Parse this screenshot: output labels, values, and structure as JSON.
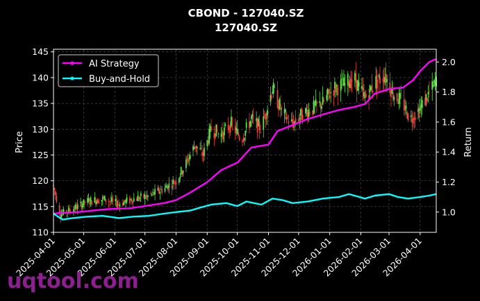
{
  "chart_data": {
    "type": "candlestick-line",
    "title": "CBOND - 127040.SZ",
    "subtitle": "127040.SZ",
    "ylabel_left": "Price",
    "ylabel_right": "Return",
    "ylim_left": [
      110,
      145.5
    ],
    "yticks_left": [
      "110",
      "115",
      "120",
      "125",
      "130",
      "135",
      "140",
      "145"
    ],
    "ylim_right": [
      0.865,
      2.085
    ],
    "yticks_right": [
      "1.0",
      "1.2",
      "1.4",
      "1.6",
      "1.8",
      "2.0"
    ],
    "x_range": [
      "2025-04-01",
      "2026-04-17"
    ],
    "xticks": [
      "2025-04-01",
      "2025-05-01",
      "2025-06-01",
      "2025-07-01",
      "2025-08-01",
      "2025-09-01",
      "2025-10-01",
      "2025-11-01",
      "2025-12-01",
      "2026-01-01",
      "2026-02-01",
      "2026-03-01",
      "2026-04-01"
    ],
    "grid": true,
    "legend_position": "top-left",
    "colors": {
      "up": "#5fe04a",
      "down": "#e8453c",
      "ai": "#ff00ff",
      "bh": "#00ffff",
      "background": "#000000",
      "axes": "#ffffff",
      "grid": "#555555"
    },
    "price_anchors": [
      [
        "2025-04-01",
        119.0
      ],
      [
        "2025-04-08",
        113.5
      ],
      [
        "2025-04-20",
        114.5
      ],
      [
        "2025-05-05",
        116.0
      ],
      [
        "2025-05-20",
        116.5
      ],
      [
        "2025-06-05",
        115.5
      ],
      [
        "2025-06-20",
        116.5
      ],
      [
        "2025-07-05",
        117.0
      ],
      [
        "2025-07-20",
        118.5
      ],
      [
        "2025-08-01",
        120.0
      ],
      [
        "2025-08-10",
        123.0
      ],
      [
        "2025-08-20",
        127.0
      ],
      [
        "2025-08-28",
        125.0
      ],
      [
        "2025-09-05",
        130.0
      ],
      [
        "2025-09-15",
        129.0
      ],
      [
        "2025-09-25",
        131.0
      ],
      [
        "2025-10-05",
        128.0
      ],
      [
        "2025-10-15",
        132.0
      ],
      [
        "2025-10-25",
        130.0
      ],
      [
        "2025-11-05",
        138.0
      ],
      [
        "2025-11-15",
        133.0
      ],
      [
        "2025-11-25",
        131.0
      ],
      [
        "2025-12-05",
        133.0
      ],
      [
        "2025-12-15",
        134.0
      ],
      [
        "2025-12-25",
        135.0
      ],
      [
        "2026-01-05",
        138.0
      ],
      [
        "2026-01-15",
        138.5
      ],
      [
        "2026-01-25",
        140.0
      ],
      [
        "2026-02-05",
        136.0
      ],
      [
        "2026-02-15",
        139.0
      ],
      [
        "2026-02-25",
        140.5
      ],
      [
        "2026-03-05",
        137.0
      ],
      [
        "2026-03-15",
        135.0
      ],
      [
        "2026-03-22",
        132.0
      ],
      [
        "2026-04-01",
        134.0
      ],
      [
        "2026-04-10",
        137.0
      ],
      [
        "2026-04-17",
        139.0
      ]
    ],
    "series": [
      {
        "name": "AI Strategy",
        "points": [
          [
            "2025-04-01",
            0.99
          ],
          [
            "2025-04-10",
            0.995
          ],
          [
            "2025-04-25",
            1.0
          ],
          [
            "2025-05-10",
            1.01
          ],
          [
            "2025-05-25",
            1.02
          ],
          [
            "2025-06-15",
            1.025
          ],
          [
            "2025-07-01",
            1.04
          ],
          [
            "2025-07-20",
            1.06
          ],
          [
            "2025-08-01",
            1.08
          ],
          [
            "2025-08-15",
            1.13
          ],
          [
            "2025-09-01",
            1.2
          ],
          [
            "2025-09-15",
            1.28
          ],
          [
            "2025-10-01",
            1.33
          ],
          [
            "2025-10-15",
            1.43
          ],
          [
            "2025-11-01",
            1.45
          ],
          [
            "2025-11-10",
            1.54
          ],
          [
            "2025-11-25",
            1.58
          ],
          [
            "2025-12-10",
            1.62
          ],
          [
            "2025-12-25",
            1.65
          ],
          [
            "2026-01-10",
            1.68
          ],
          [
            "2026-01-25",
            1.7
          ],
          [
            "2026-02-05",
            1.72
          ],
          [
            "2026-02-15",
            1.79
          ],
          [
            "2026-03-01",
            1.82
          ],
          [
            "2026-03-15",
            1.83
          ],
          [
            "2026-03-25",
            1.88
          ],
          [
            "2026-04-01",
            1.94
          ],
          [
            "2026-04-10",
            2.0
          ],
          [
            "2026-04-17",
            2.02
          ]
        ]
      },
      {
        "name": "Buy-and-Hold",
        "points": [
          [
            "2025-04-01",
            0.99
          ],
          [
            "2025-04-10",
            0.95
          ],
          [
            "2025-04-20",
            0.96
          ],
          [
            "2025-05-05",
            0.97
          ],
          [
            "2025-05-20",
            0.975
          ],
          [
            "2025-06-05",
            0.96
          ],
          [
            "2025-06-20",
            0.97
          ],
          [
            "2025-07-05",
            0.975
          ],
          [
            "2025-07-20",
            0.99
          ],
          [
            "2025-08-01",
            1.0
          ],
          [
            "2025-08-15",
            1.01
          ],
          [
            "2025-08-25",
            1.03
          ],
          [
            "2025-09-05",
            1.05
          ],
          [
            "2025-09-20",
            1.06
          ],
          [
            "2025-10-01",
            1.04
          ],
          [
            "2025-10-10",
            1.07
          ],
          [
            "2025-10-25",
            1.05
          ],
          [
            "2025-11-05",
            1.09
          ],
          [
            "2025-11-15",
            1.08
          ],
          [
            "2025-11-25",
            1.06
          ],
          [
            "2025-12-10",
            1.07
          ],
          [
            "2025-12-25",
            1.09
          ],
          [
            "2026-01-10",
            1.1
          ],
          [
            "2026-01-20",
            1.12
          ],
          [
            "2026-02-05",
            1.09
          ],
          [
            "2026-02-15",
            1.11
          ],
          [
            "2026-03-01",
            1.12
          ],
          [
            "2026-03-10",
            1.1
          ],
          [
            "2026-03-20",
            1.09
          ],
          [
            "2026-04-01",
            1.1
          ],
          [
            "2026-04-10",
            1.11
          ],
          [
            "2026-04-17",
            1.12
          ]
        ]
      }
    ]
  },
  "watermark": "uqtool.com"
}
